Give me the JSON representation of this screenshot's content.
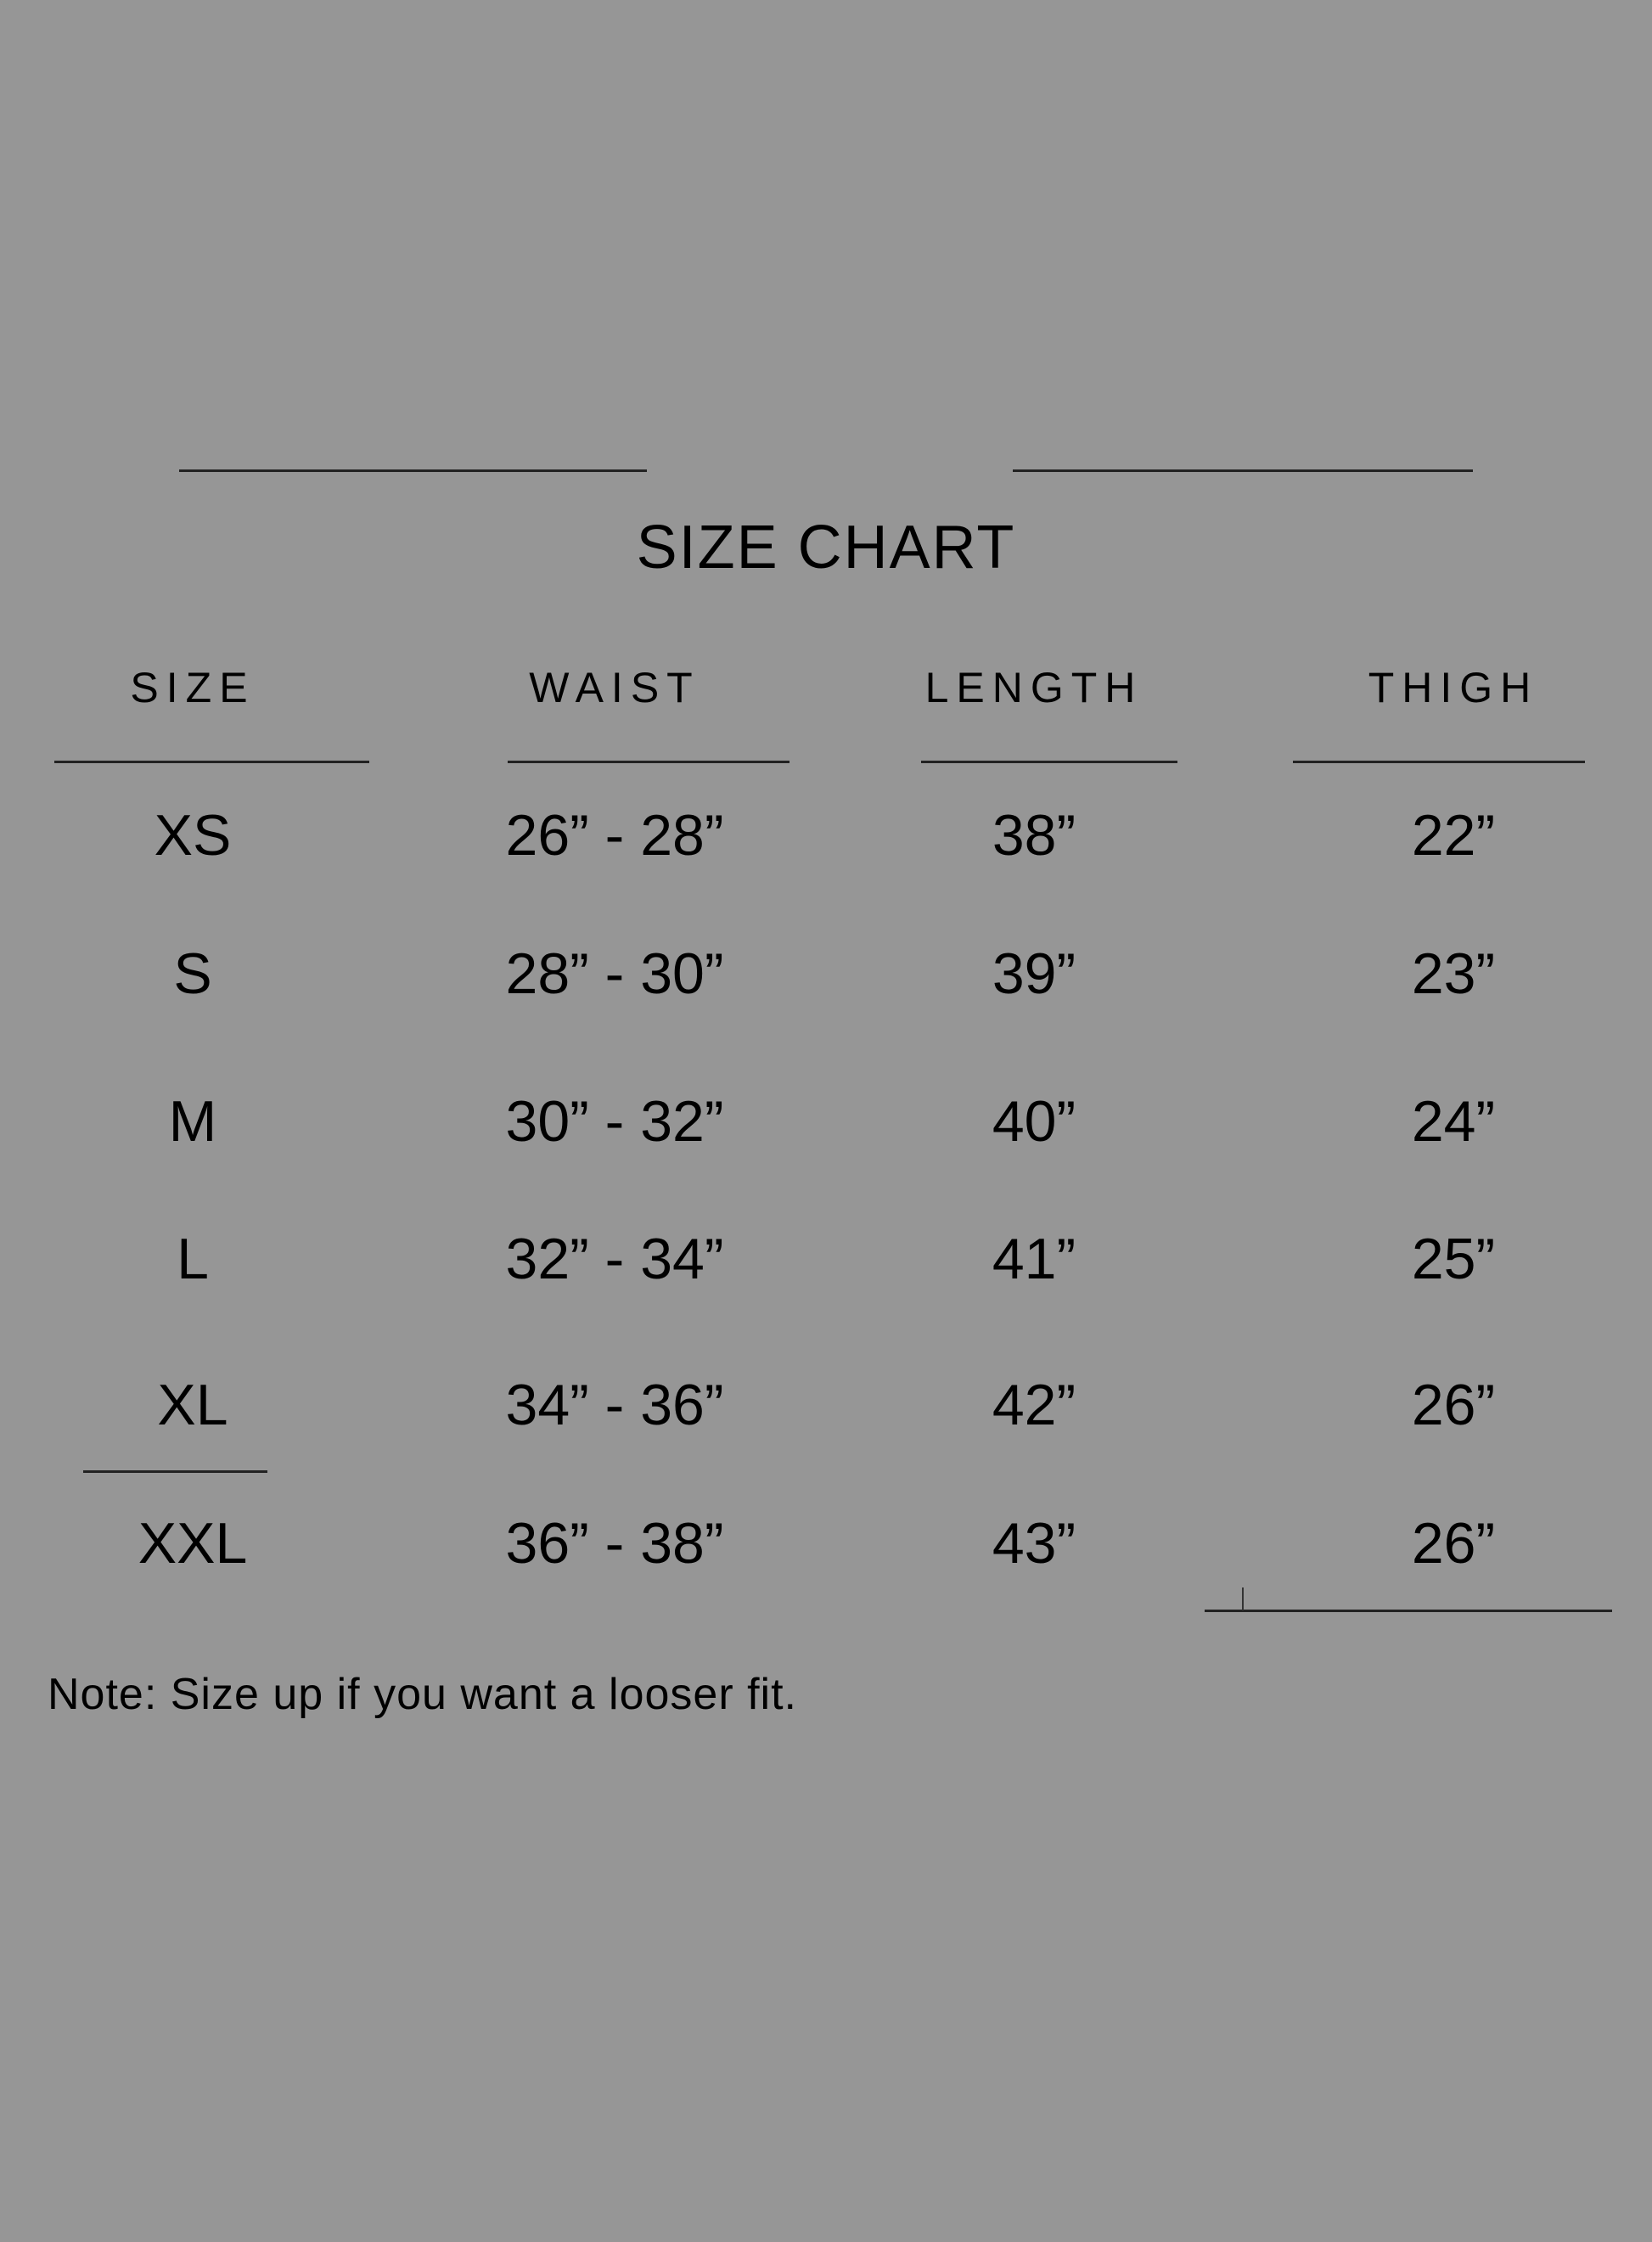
{
  "title": "SIZE CHART",
  "headers": [
    "SIZE",
    "WAIST",
    "LENGTH",
    "THIGH"
  ],
  "rows": [
    [
      "XS",
      "26” - 28”",
      "38”",
      "22”"
    ],
    [
      "S",
      "28” - 30”",
      "39”",
      "23”"
    ],
    [
      "M",
      "30” - 32”",
      "40”",
      "24”"
    ],
    [
      "L",
      "32” - 34”",
      "41”",
      "25”"
    ],
    [
      "XL",
      "34” - 36”",
      "42”",
      "26”"
    ],
    [
      "XXL",
      "36” - 38”",
      "43”",
      "26”"
    ]
  ],
  "note": "Note: Size up if you want a looser fit.",
  "colors": {
    "background": "#969696",
    "text": "#000000",
    "lines": "#222222"
  }
}
